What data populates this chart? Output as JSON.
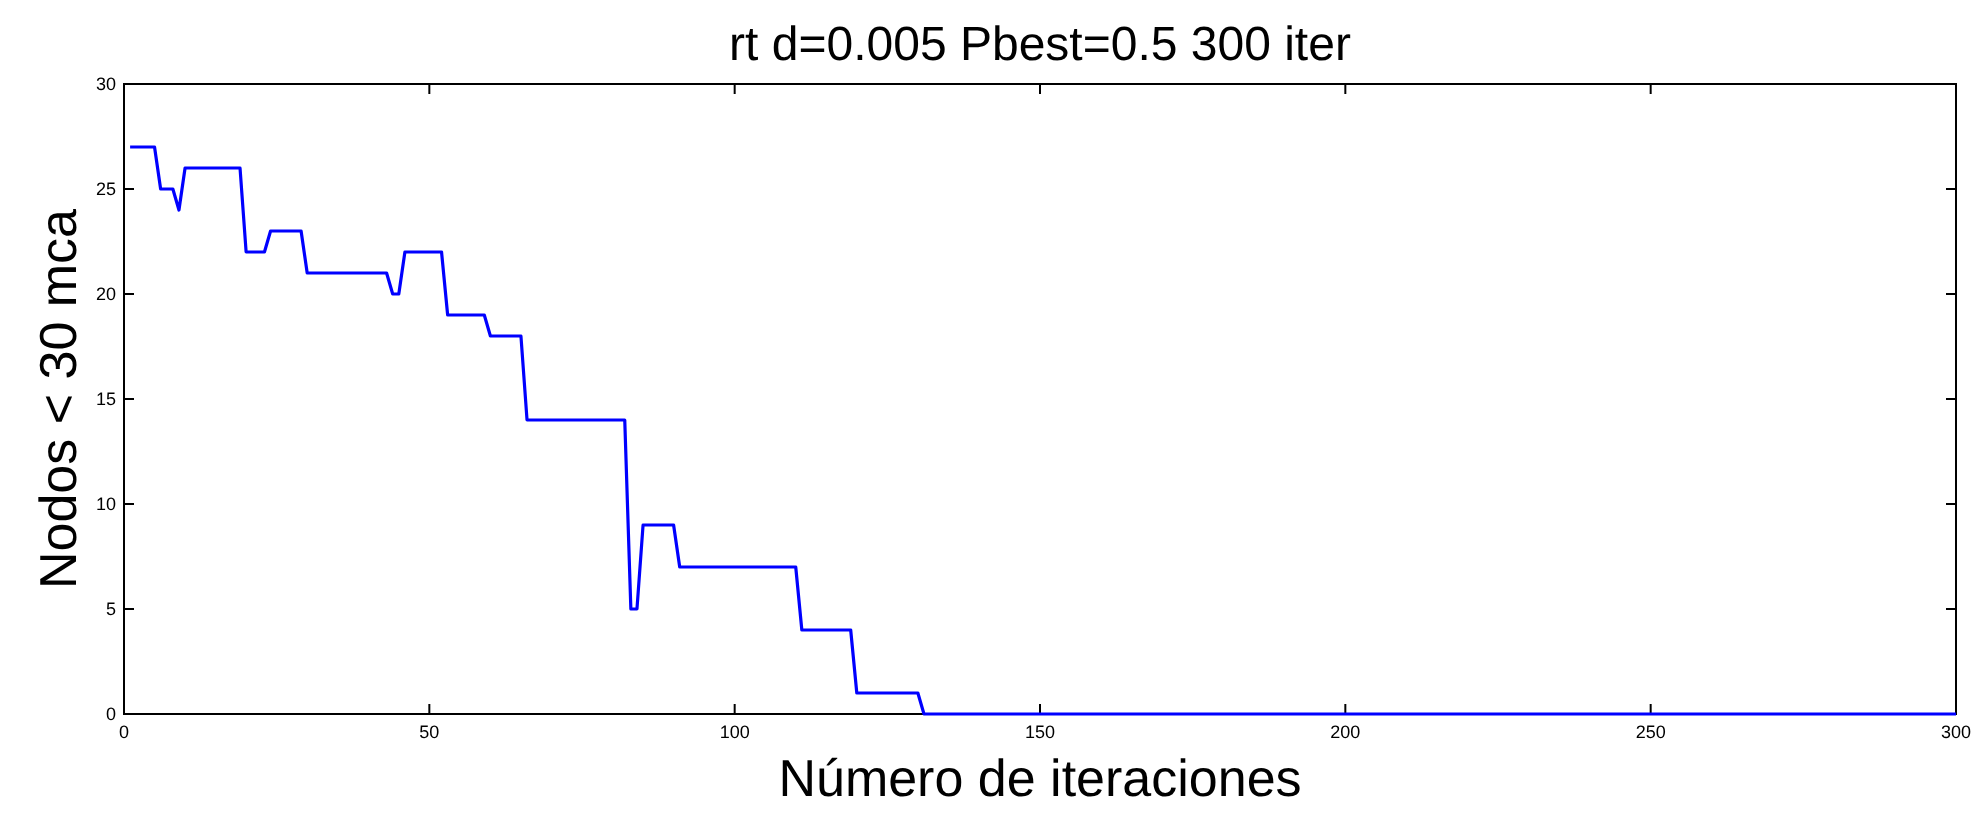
{
  "chart_data": {
    "type": "line",
    "title": "rt d=0.005 Pbest=0.5 300 iter",
    "xlabel": "Número de iteraciones",
    "ylabel": "Nodos < 30 mca",
    "x": [
      1,
      5,
      6,
      8,
      9,
      10,
      19,
      20,
      23,
      24,
      29,
      30,
      43,
      44,
      45,
      46,
      52,
      53,
      59,
      60,
      65,
      66,
      82,
      83,
      84,
      85,
      90,
      91,
      110,
      111,
      119,
      120,
      130,
      131,
      300
    ],
    "series": [
      {
        "color": "#0000ff",
        "values": [
          27,
          27,
          25,
          25,
          24,
          26,
          26,
          22,
          22,
          23,
          23,
          21,
          21,
          20,
          20,
          22,
          22,
          19,
          19,
          18,
          18,
          14,
          14,
          5,
          5,
          9,
          9,
          7,
          7,
          4,
          4,
          1,
          1,
          0,
          0
        ]
      }
    ],
    "xlim": [
      0,
      300
    ],
    "xticks": [
      0,
      50,
      100,
      150,
      200,
      250,
      300
    ],
    "ylim": [
      0,
      30
    ],
    "yticks": [
      0,
      5,
      10,
      15,
      20,
      25,
      30
    ],
    "grid": false,
    "marker": "none",
    "line_style": "solid"
  }
}
